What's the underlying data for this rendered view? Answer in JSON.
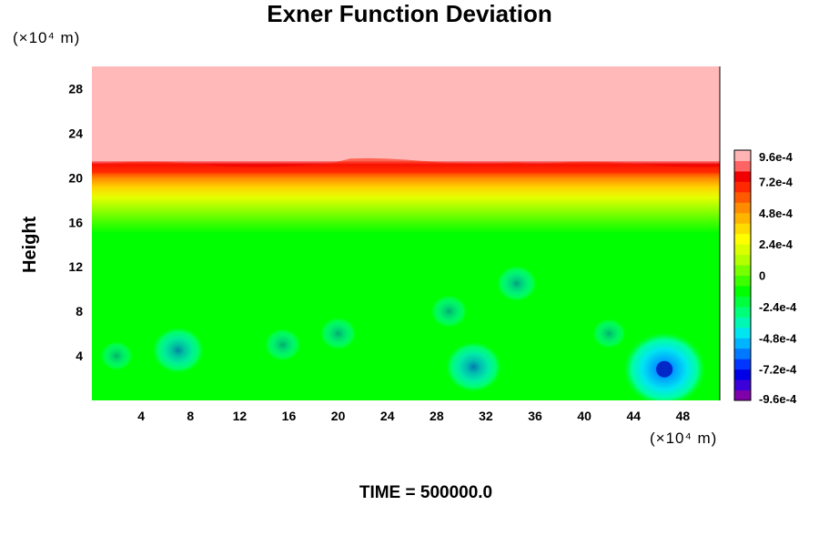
{
  "chart_data": {
    "type": "heatmap",
    "title": "Exner Function Deviation",
    "ylabel": "Height",
    "yunit": "(×10⁴ m)",
    "xunit": "(×10⁴ m)",
    "footer": "TIME = 500000.0",
    "xlim": [
      0,
      51
    ],
    "ylim": [
      0,
      30
    ],
    "xticks": [
      4,
      8,
      12,
      16,
      20,
      24,
      28,
      32,
      36,
      40,
      44,
      48
    ],
    "yticks": [
      4,
      8,
      12,
      16,
      20,
      24,
      28
    ],
    "colorbar": {
      "min": -0.00096,
      "max": 0.00096,
      "ticks": [
        {
          "value": 0.00096,
          "label": "9.6e-4"
        },
        {
          "value": 0.00072,
          "label": "7.2e-4"
        },
        {
          "value": 0.00048,
          "label": "4.8e-4"
        },
        {
          "value": 0.00024,
          "label": "2.4e-4"
        },
        {
          "value": 0,
          "label": "0"
        },
        {
          "value": -0.00024,
          "label": "-2.4e-4"
        },
        {
          "value": -0.00048,
          "label": "-4.8e-4"
        },
        {
          "value": -0.00072,
          "label": "-7.2e-4"
        },
        {
          "value": -0.00096,
          "label": "-9.6e-4"
        }
      ],
      "colors": [
        "#7f00a8",
        "#3c00d8",
        "#0000e6",
        "#0036ff",
        "#0078ff",
        "#00b4ff",
        "#00e6f0",
        "#00f8b4",
        "#00ff78",
        "#00ff3c",
        "#00ff00",
        "#3cff00",
        "#78ff00",
        "#b4ff00",
        "#dcff00",
        "#ffff00",
        "#ffdc00",
        "#ffb400",
        "#ff8c00",
        "#ff5a00",
        "#ff2800",
        "#f00000",
        "#ff6464",
        "#ffb4b4"
      ]
    },
    "regions": [
      {
        "name": "upper-layer",
        "y_from": 21.2,
        "y_to": 30,
        "value": 0.00096,
        "color": "#ffb9b9"
      },
      {
        "name": "gradient-band",
        "y_from": 15,
        "y_to": 21.5,
        "value_top": 0.00084,
        "value_bottom": 0.0001
      },
      {
        "name": "lower-layer",
        "y_from": 0,
        "y_to": 15,
        "value": 0,
        "color": "#00ff00"
      }
    ],
    "features": [
      {
        "x": 7,
        "y": 4.5,
        "value": -0.0003
      },
      {
        "x": 31,
        "y": 3,
        "value": -0.00036
      },
      {
        "x": 46.5,
        "y": 2.8,
        "value": -0.0007
      },
      {
        "x": 34.5,
        "y": 10.5,
        "value": -0.00015
      },
      {
        "x": 15.5,
        "y": 5,
        "value": -0.0001
      },
      {
        "x": 20,
        "y": 6,
        "value": -0.0001
      },
      {
        "x": 29,
        "y": 8,
        "value": -0.0001
      },
      {
        "x": 2,
        "y": 4,
        "value": -5e-05
      },
      {
        "x": 42,
        "y": 6,
        "value": -6e-05
      }
    ]
  }
}
